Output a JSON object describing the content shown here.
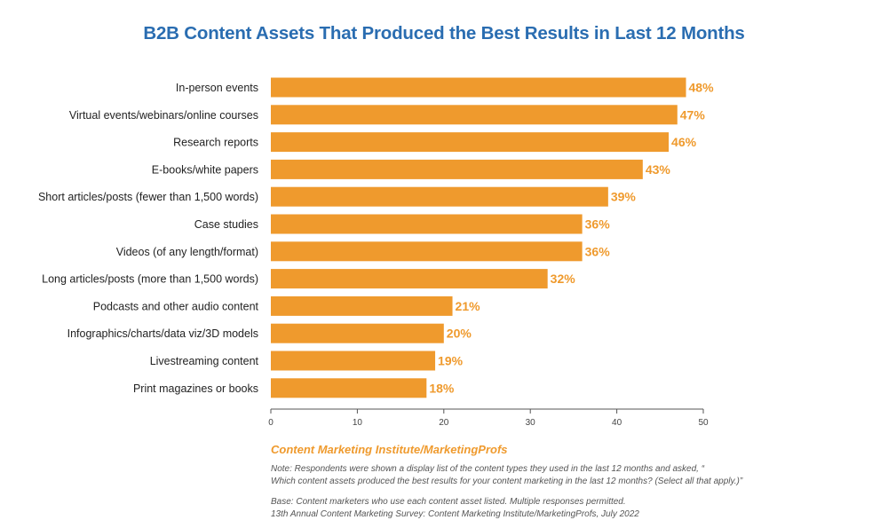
{
  "colors": {
    "title": "#2a6db1",
    "bar": "#ef9a2d",
    "value_label": "#ef9a2d",
    "source": "#ef9a2d",
    "axis": "#555555"
  },
  "chart_data": {
    "type": "bar",
    "orientation": "horizontal",
    "title": "B2B Content Assets That Produced the Best Results in Last 12 Months",
    "categories": [
      "In-person events",
      "Virtual events/webinars/online courses",
      "Research reports",
      "E-books/white papers",
      "Short articles/posts (fewer than 1,500 words)",
      "Case studies",
      "Videos (of any length/format)",
      "Long articles/posts (more than 1,500 words)",
      "Podcasts and other audio content",
      "Infographics/charts/data viz/3D models",
      "Livestreaming content",
      "Print magazines or books"
    ],
    "values": [
      48,
      47,
      46,
      43,
      39,
      36,
      36,
      32,
      21,
      20,
      19,
      18
    ],
    "value_labels": [
      "48%",
      "47%",
      "46%",
      "43%",
      "39%",
      "36%",
      "36%",
      "32%",
      "21%",
      "20%",
      "19%",
      "18%"
    ],
    "xlim": [
      0,
      50
    ],
    "xticks": [
      0,
      10,
      20,
      30,
      40,
      50
    ],
    "xlabel": "",
    "ylabel": "",
    "grid": false
  },
  "footer": {
    "source": "Content Marketing Institute/MarketingProfs",
    "note_line1": "Note: Respondents were shown a display list of the content types they used in the last 12 months and asked, “",
    "note_line2": "Which content assets produced the best results for your content marketing in the last 12 months? (Select all that apply.)”",
    "base_line1": "Base: Content marketers who use each content asset listed. Multiple responses permitted.",
    "base_line2": "13th Annual Content Marketing Survey: Content Marketing Institute/MarketingProfs, July 2022"
  }
}
